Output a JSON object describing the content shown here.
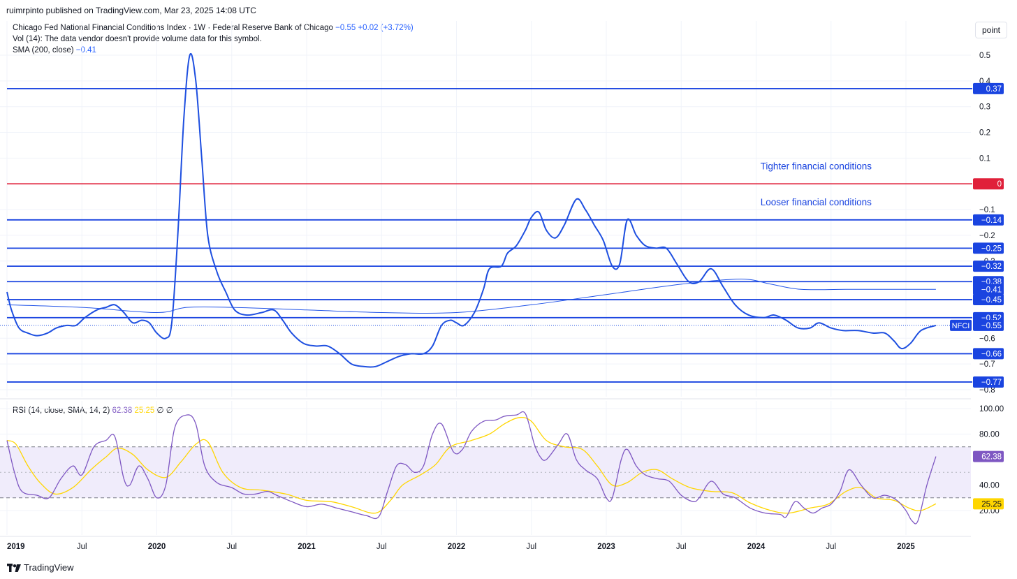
{
  "header": {
    "published": "ruimrpinto published on TradingView.com, Mar 23, 2025 14:08 UTC"
  },
  "legend": {
    "symbol": "Chicago Fed National Financial Conditions Index · 1W · Federal Reserve Bank of Chicago",
    "last": "−0.55",
    "change": "+0.02 (+3.72%)",
    "vol": "Vol (14): The data vendor doesn't provide volume data for this symbol.",
    "sma_label": "SMA (200, close)",
    "sma_value": "−0.41",
    "rsi_label": "RSI (14, close, SMA, 14, 2)",
    "rsi_value": "62.38",
    "rsi_sma_value": "25.25",
    "rsi_extra": "∅ ∅"
  },
  "unit_button": "point",
  "footer": {
    "brand": "TradingView"
  },
  "colors": {
    "nfci": "#1e4fe0",
    "sma": "#2456e8",
    "hline": "#1a44e0",
    "zero": "#e0203a",
    "rsi": "#7e57c2",
    "rsi_sma": "#ffd600",
    "rsi_band": "#f0ecfb"
  },
  "chart_data": [
    {
      "type": "line",
      "pane": "main",
      "series_name": "NFCI",
      "ylim": [
        -0.85,
        0.55
      ],
      "y_ticks": [
        0.5,
        0.4,
        0.3,
        0.2,
        0.1,
        -0.1,
        -0.2,
        -0.3,
        -0.6,
        -0.7,
        -0.8
      ],
      "y_tick_labels": [
        "0.5",
        "0.4",
        "0.3",
        "0.2",
        "0.1",
        "−0.1",
        "−0.2",
        "−0.3",
        "−0.6",
        "−0.7",
        "−0.8"
      ],
      "x_ticks": [
        {
          "t": 2019.0,
          "label": "2019",
          "bold": true
        },
        {
          "t": 2019.5,
          "label": "Jul",
          "bold": false
        },
        {
          "t": 2020.0,
          "label": "2020",
          "bold": true
        },
        {
          "t": 2020.5,
          "label": "Jul",
          "bold": false
        },
        {
          "t": 2021.0,
          "label": "2021",
          "bold": true
        },
        {
          "t": 2021.5,
          "label": "Jul",
          "bold": false
        },
        {
          "t": 2022.0,
          "label": "2022",
          "bold": true
        },
        {
          "t": 2022.5,
          "label": "Jul",
          "bold": false
        },
        {
          "t": 2023.0,
          "label": "2023",
          "bold": true
        },
        {
          "t": 2023.5,
          "label": "Jul",
          "bold": false
        },
        {
          "t": 2024.0,
          "label": "2024",
          "bold": true
        },
        {
          "t": 2024.5,
          "label": "Jul",
          "bold": false
        },
        {
          "t": 2025.0,
          "label": "2025",
          "bold": true
        }
      ],
      "horizontal_lines": [
        {
          "value": 0.37,
          "label": "0.37",
          "kind": "level"
        },
        {
          "value": 0,
          "label": "0",
          "kind": "zero"
        },
        {
          "value": -0.14,
          "label": "−0.14",
          "kind": "level"
        },
        {
          "value": -0.25,
          "label": "−0.25",
          "kind": "level"
        },
        {
          "value": -0.32,
          "label": "−0.32",
          "kind": "level"
        },
        {
          "value": -0.38,
          "label": "−0.38",
          "kind": "level"
        },
        {
          "value": -0.45,
          "label": "−0.45",
          "kind": "level"
        },
        {
          "value": -0.52,
          "label": "−0.52",
          "kind": "level"
        },
        {
          "value": -0.66,
          "label": "−0.66",
          "kind": "level"
        },
        {
          "value": -0.77,
          "label": "−0.77",
          "kind": "level"
        }
      ],
      "axis_labels_only": [
        {
          "value": -0.41,
          "label": "−0.41"
        }
      ],
      "last_value": {
        "value": -0.55,
        "label": "−0.55",
        "tag": "NFCI"
      },
      "annotations": [
        {
          "text": "Tighter financial conditions",
          "t": 2024.4,
          "value": 0.07
        },
        {
          "text": "Looser financial conditions",
          "t": 2024.4,
          "value": -0.07
        }
      ],
      "nfci": [
        [
          2019.0,
          -0.42
        ],
        [
          2019.03,
          -0.49
        ],
        [
          2019.08,
          -0.56
        ],
        [
          2019.14,
          -0.58
        ],
        [
          2019.2,
          -0.59
        ],
        [
          2019.27,
          -0.58
        ],
        [
          2019.33,
          -0.56
        ],
        [
          2019.4,
          -0.55
        ],
        [
          2019.46,
          -0.55
        ],
        [
          2019.52,
          -0.52
        ],
        [
          2019.6,
          -0.49
        ],
        [
          2019.66,
          -0.48
        ],
        [
          2019.72,
          -0.47
        ],
        [
          2019.78,
          -0.5
        ],
        [
          2019.84,
          -0.54
        ],
        [
          2019.9,
          -0.53
        ],
        [
          2019.95,
          -0.54
        ],
        [
          2020.0,
          -0.58
        ],
        [
          2020.06,
          -0.6
        ],
        [
          2020.1,
          -0.54
        ],
        [
          2020.14,
          -0.2
        ],
        [
          2020.18,
          0.25
        ],
        [
          2020.22,
          0.5
        ],
        [
          2020.26,
          0.4
        ],
        [
          2020.3,
          0.1
        ],
        [
          2020.34,
          -0.2
        ],
        [
          2020.4,
          -0.34
        ],
        [
          2020.46,
          -0.42
        ],
        [
          2020.52,
          -0.49
        ],
        [
          2020.6,
          -0.51
        ],
        [
          2020.7,
          -0.5
        ],
        [
          2020.78,
          -0.49
        ],
        [
          2020.84,
          -0.53
        ],
        [
          2020.9,
          -0.58
        ],
        [
          2020.98,
          -0.62
        ],
        [
          2021.06,
          -0.63
        ],
        [
          2021.14,
          -0.63
        ],
        [
          2021.22,
          -0.66
        ],
        [
          2021.3,
          -0.7
        ],
        [
          2021.38,
          -0.71
        ],
        [
          2021.46,
          -0.71
        ],
        [
          2021.54,
          -0.69
        ],
        [
          2021.62,
          -0.67
        ],
        [
          2021.7,
          -0.66
        ],
        [
          2021.78,
          -0.66
        ],
        [
          2021.84,
          -0.63
        ],
        [
          2021.9,
          -0.55
        ],
        [
          2021.96,
          -0.53
        ],
        [
          2022.0,
          -0.54
        ],
        [
          2022.05,
          -0.55
        ],
        [
          2022.12,
          -0.5
        ],
        [
          2022.18,
          -0.41
        ],
        [
          2022.22,
          -0.33
        ],
        [
          2022.3,
          -0.32
        ],
        [
          2022.34,
          -0.27
        ],
        [
          2022.4,
          -0.24
        ],
        [
          2022.46,
          -0.18
        ],
        [
          2022.5,
          -0.13
        ],
        [
          2022.55,
          -0.11
        ],
        [
          2022.6,
          -0.18
        ],
        [
          2022.66,
          -0.21
        ],
        [
          2022.72,
          -0.16
        ],
        [
          2022.8,
          -0.06
        ],
        [
          2022.86,
          -0.1
        ],
        [
          2022.92,
          -0.16
        ],
        [
          2022.98,
          -0.22
        ],
        [
          2023.04,
          -0.32
        ],
        [
          2023.09,
          -0.31
        ],
        [
          2023.14,
          -0.14
        ],
        [
          2023.2,
          -0.2
        ],
        [
          2023.26,
          -0.24
        ],
        [
          2023.33,
          -0.25
        ],
        [
          2023.4,
          -0.25
        ],
        [
          2023.47,
          -0.31
        ],
        [
          2023.55,
          -0.38
        ],
        [
          2023.62,
          -0.38
        ],
        [
          2023.7,
          -0.33
        ],
        [
          2023.78,
          -0.4
        ],
        [
          2023.86,
          -0.47
        ],
        [
          2023.95,
          -0.51
        ],
        [
          2024.05,
          -0.52
        ],
        [
          2024.12,
          -0.51
        ],
        [
          2024.2,
          -0.53
        ],
        [
          2024.28,
          -0.56
        ],
        [
          2024.36,
          -0.56
        ],
        [
          2024.42,
          -0.54
        ],
        [
          2024.5,
          -0.56
        ],
        [
          2024.58,
          -0.57
        ],
        [
          2024.68,
          -0.57
        ],
        [
          2024.78,
          -0.58
        ],
        [
          2024.86,
          -0.58
        ],
        [
          2024.92,
          -0.61
        ],
        [
          2024.97,
          -0.64
        ],
        [
          2025.03,
          -0.62
        ],
        [
          2025.1,
          -0.57
        ],
        [
          2025.2,
          -0.55
        ]
      ],
      "sma": [
        [
          2019.0,
          -0.47
        ],
        [
          2019.5,
          -0.48
        ],
        [
          2020.0,
          -0.5
        ],
        [
          2020.2,
          -0.48
        ],
        [
          2020.5,
          -0.48
        ],
        [
          2021.0,
          -0.49
        ],
        [
          2021.5,
          -0.5
        ],
        [
          2022.0,
          -0.5
        ],
        [
          2022.5,
          -0.47
        ],
        [
          2023.0,
          -0.43
        ],
        [
          2023.5,
          -0.39
        ],
        [
          2023.9,
          -0.37
        ],
        [
          2024.1,
          -0.39
        ],
        [
          2024.3,
          -0.41
        ],
        [
          2024.6,
          -0.41
        ],
        [
          2025.0,
          -0.41
        ],
        [
          2025.2,
          -0.41
        ]
      ]
    },
    {
      "type": "line",
      "pane": "rsi",
      "series_name": "RSI",
      "ylim": [
        10,
        100
      ],
      "y_ticks": [
        100,
        80,
        40,
        20
      ],
      "y_tick_labels": [
        "100.00",
        "80.00",
        "40.00",
        "20.00"
      ],
      "band": [
        30,
        70
      ],
      "mid_line": 50,
      "last_value": {
        "value": 62.38,
        "label": "62.38"
      },
      "sma_last_value": {
        "value": 25.25,
        "label": "25.25"
      },
      "rsi": [
        [
          2019.0,
          75
        ],
        [
          2019.05,
          50
        ],
        [
          2019.1,
          35
        ],
        [
          2019.2,
          32
        ],
        [
          2019.28,
          30
        ],
        [
          2019.36,
          45
        ],
        [
          2019.44,
          55
        ],
        [
          2019.5,
          48
        ],
        [
          2019.58,
          70
        ],
        [
          2019.66,
          75
        ],
        [
          2019.72,
          78
        ],
        [
          2019.78,
          45
        ],
        [
          2019.82,
          40
        ],
        [
          2019.88,
          55
        ],
        [
          2019.94,
          45
        ],
        [
          2020.0,
          30
        ],
        [
          2020.06,
          40
        ],
        [
          2020.12,
          85
        ],
        [
          2020.2,
          95
        ],
        [
          2020.26,
          88
        ],
        [
          2020.32,
          55
        ],
        [
          2020.4,
          42
        ],
        [
          2020.5,
          38
        ],
        [
          2020.58,
          33
        ],
        [
          2020.66,
          33
        ],
        [
          2020.74,
          35
        ],
        [
          2020.8,
          32
        ],
        [
          2020.9,
          27
        ],
        [
          2021.0,
          23
        ],
        [
          2021.1,
          25
        ],
        [
          2021.2,
          22
        ],
        [
          2021.3,
          19
        ],
        [
          2021.4,
          16
        ],
        [
          2021.48,
          15
        ],
        [
          2021.54,
          35
        ],
        [
          2021.6,
          55
        ],
        [
          2021.66,
          56
        ],
        [
          2021.72,
          50
        ],
        [
          2021.78,
          55
        ],
        [
          2021.84,
          80
        ],
        [
          2021.9,
          88
        ],
        [
          2021.98,
          66
        ],
        [
          2022.04,
          68
        ],
        [
          2022.1,
          82
        ],
        [
          2022.18,
          90
        ],
        [
          2022.26,
          91
        ],
        [
          2022.32,
          94
        ],
        [
          2022.4,
          95
        ],
        [
          2022.46,
          96
        ],
        [
          2022.52,
          72
        ],
        [
          2022.56,
          62
        ],
        [
          2022.6,
          60
        ],
        [
          2022.68,
          72
        ],
        [
          2022.74,
          80
        ],
        [
          2022.8,
          60
        ],
        [
          2022.86,
          52
        ],
        [
          2022.94,
          45
        ],
        [
          2023.0,
          30
        ],
        [
          2023.04,
          30
        ],
        [
          2023.1,
          60
        ],
        [
          2023.14,
          68
        ],
        [
          2023.2,
          55
        ],
        [
          2023.26,
          48
        ],
        [
          2023.34,
          45
        ],
        [
          2023.42,
          43
        ],
        [
          2023.5,
          32
        ],
        [
          2023.58,
          27
        ],
        [
          2023.62,
          30
        ],
        [
          2023.7,
          43
        ],
        [
          2023.78,
          33
        ],
        [
          2023.86,
          30
        ],
        [
          2023.96,
          22
        ],
        [
          2024.06,
          18
        ],
        [
          2024.16,
          17
        ],
        [
          2024.2,
          15
        ],
        [
          2024.26,
          27
        ],
        [
          2024.32,
          22
        ],
        [
          2024.38,
          18
        ],
        [
          2024.44,
          22
        ],
        [
          2024.5,
          25
        ],
        [
          2024.56,
          35
        ],
        [
          2024.62,
          52
        ],
        [
          2024.7,
          40
        ],
        [
          2024.78,
          30
        ],
        [
          2024.86,
          32
        ],
        [
          2024.94,
          28
        ],
        [
          2025.0,
          20
        ],
        [
          2025.04,
          12
        ],
        [
          2025.08,
          12
        ],
        [
          2025.14,
          40
        ],
        [
          2025.2,
          62.4
        ]
      ],
      "rsi_sma": [
        [
          2019.0,
          75
        ],
        [
          2019.06,
          72
        ],
        [
          2019.14,
          55
        ],
        [
          2019.22,
          42
        ],
        [
          2019.32,
          33
        ],
        [
          2019.44,
          38
        ],
        [
          2019.56,
          52
        ],
        [
          2019.66,
          62
        ],
        [
          2019.74,
          69
        ],
        [
          2019.84,
          64
        ],
        [
          2019.94,
          52
        ],
        [
          2020.06,
          46
        ],
        [
          2020.16,
          58
        ],
        [
          2020.26,
          72
        ],
        [
          2020.34,
          74
        ],
        [
          2020.44,
          50
        ],
        [
          2020.56,
          38
        ],
        [
          2020.7,
          36
        ],
        [
          2020.86,
          33
        ],
        [
          2021.0,
          28
        ],
        [
          2021.16,
          27
        ],
        [
          2021.3,
          23
        ],
        [
          2021.46,
          18
        ],
        [
          2021.56,
          28
        ],
        [
          2021.64,
          40
        ],
        [
          2021.76,
          48
        ],
        [
          2021.86,
          56
        ],
        [
          2021.96,
          70
        ],
        [
          2022.1,
          75
        ],
        [
          2022.22,
          80
        ],
        [
          2022.32,
          88
        ],
        [
          2022.42,
          93
        ],
        [
          2022.5,
          90
        ],
        [
          2022.6,
          75
        ],
        [
          2022.72,
          70
        ],
        [
          2022.84,
          68
        ],
        [
          2022.94,
          55
        ],
        [
          2023.04,
          40
        ],
        [
          2023.14,
          42
        ],
        [
          2023.24,
          50
        ],
        [
          2023.34,
          52
        ],
        [
          2023.44,
          45
        ],
        [
          2023.56,
          38
        ],
        [
          2023.7,
          35
        ],
        [
          2023.84,
          34
        ],
        [
          2023.96,
          26
        ],
        [
          2024.1,
          20
        ],
        [
          2024.22,
          18
        ],
        [
          2024.36,
          22
        ],
        [
          2024.48,
          25
        ],
        [
          2024.6,
          35
        ],
        [
          2024.7,
          38
        ],
        [
          2024.8,
          30
        ],
        [
          2024.92,
          28
        ],
        [
          2025.02,
          22
        ],
        [
          2025.1,
          20
        ],
        [
          2025.2,
          25.25
        ]
      ]
    }
  ]
}
